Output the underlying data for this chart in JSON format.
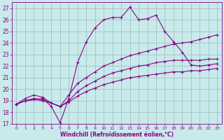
{
  "bg_color": "#c8eaea",
  "line_color": "#880088",
  "grid_color": "#99bbbb",
  "xlabel": "Windchill (Refroidissement éolien,°C)",
  "ylim": [
    17,
    27.5
  ],
  "xlim": [
    -0.5,
    23.5
  ],
  "yticks": [
    17,
    18,
    19,
    20,
    21,
    22,
    23,
    24,
    25,
    26,
    27
  ],
  "xticks": [
    0,
    1,
    2,
    3,
    4,
    5,
    6,
    7,
    8,
    9,
    10,
    11,
    12,
    13,
    14,
    15,
    16,
    17,
    18,
    19,
    20,
    21,
    22,
    23
  ],
  "line_spike_x": [
    0,
    1,
    3,
    4,
    5,
    6,
    7,
    8,
    9,
    10,
    11,
    12,
    13,
    14,
    15,
    16,
    17,
    18,
    19,
    20,
    21,
    22,
    23
  ],
  "line_spike_y": [
    18.7,
    19.0,
    19.2,
    18.5,
    17.1,
    19.2,
    22.3,
    24.1,
    25.3,
    26.0,
    26.2,
    26.2,
    27.1,
    26.0,
    26.1,
    26.4,
    25.0,
    24.1,
    23.2,
    22.1,
    22.0,
    22.1,
    22.2
  ],
  "line_top_x": [
    0,
    1,
    2,
    3,
    4,
    5,
    6,
    7,
    8,
    9,
    10,
    11,
    12,
    13,
    14,
    15,
    16,
    17,
    18,
    19,
    20,
    21,
    22,
    23
  ],
  "line_top_y": [
    18.7,
    19.2,
    19.5,
    19.3,
    18.8,
    18.5,
    19.5,
    20.5,
    21.0,
    21.5,
    22.0,
    22.3,
    22.6,
    22.9,
    23.1,
    23.3,
    23.5,
    23.7,
    23.9,
    24.0,
    24.1,
    24.3,
    24.5,
    24.7
  ],
  "line_mid_x": [
    0,
    1,
    2,
    3,
    4,
    5,
    6,
    7,
    8,
    9,
    10,
    11,
    12,
    13,
    14,
    15,
    16,
    17,
    18,
    19,
    20,
    21,
    22,
    23
  ],
  "line_mid_y": [
    18.7,
    19.0,
    19.2,
    19.1,
    18.8,
    18.5,
    19.0,
    19.8,
    20.3,
    20.7,
    21.1,
    21.4,
    21.6,
    21.8,
    22.0,
    22.1,
    22.3,
    22.4,
    22.5,
    22.5,
    22.5,
    22.5,
    22.6,
    22.6
  ],
  "line_bot_x": [
    0,
    1,
    2,
    3,
    4,
    5,
    6,
    7,
    8,
    9,
    10,
    11,
    12,
    13,
    14,
    15,
    16,
    17,
    18,
    19,
    20,
    21,
    22,
    23
  ],
  "line_bot_y": [
    18.7,
    19.0,
    19.1,
    19.0,
    18.8,
    18.5,
    18.9,
    19.4,
    19.8,
    20.1,
    20.4,
    20.6,
    20.8,
    21.0,
    21.1,
    21.2,
    21.3,
    21.4,
    21.5,
    21.5,
    21.6,
    21.6,
    21.7,
    21.8
  ]
}
